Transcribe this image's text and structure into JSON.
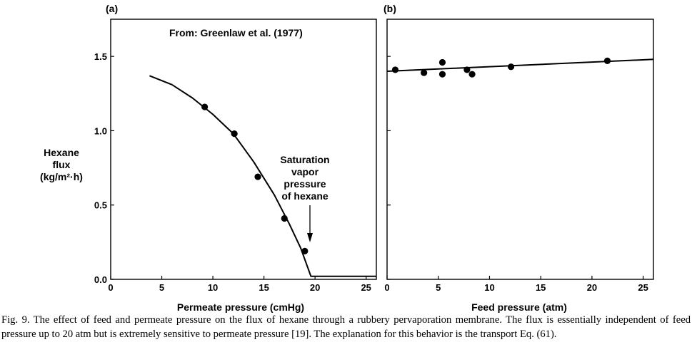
{
  "chart_data": [
    {
      "panel_label": "(a)",
      "type": "line+scatter",
      "annotation_source": "From: Greenlaw et al. (1977)",
      "xlabel": "Permeate pressure (cmHg)",
      "ylabel_lines": [
        "Hexane",
        "flux",
        "(kg/m²·h)"
      ],
      "xlim": [
        0,
        26
      ],
      "ylim": [
        0,
        1.75
      ],
      "x_ticks": [
        0,
        5,
        10,
        15,
        20,
        25
      ],
      "x_tick_labels": [
        "0",
        "5",
        "10",
        "15",
        "20",
        "25"
      ],
      "y_ticks": [
        0,
        0.5,
        1.0,
        1.5
      ],
      "y_tick_labels": [
        "0.0",
        "0.5",
        "1.0",
        "1.5"
      ],
      "points": [
        {
          "x": 9.2,
          "y": 1.16
        },
        {
          "x": 12.1,
          "y": 0.98
        },
        {
          "x": 14.4,
          "y": 0.69
        },
        {
          "x": 17.0,
          "y": 0.41
        },
        {
          "x": 19.0,
          "y": 0.19
        }
      ],
      "curve": [
        {
          "x": 3.8,
          "y": 1.37
        },
        {
          "x": 6.0,
          "y": 1.31
        },
        {
          "x": 8.0,
          "y": 1.22
        },
        {
          "x": 10.0,
          "y": 1.11
        },
        {
          "x": 12.0,
          "y": 0.98
        },
        {
          "x": 14.0,
          "y": 0.79
        },
        {
          "x": 16.0,
          "y": 0.57
        },
        {
          "x": 17.5,
          "y": 0.37
        },
        {
          "x": 18.6,
          "y": 0.21
        },
        {
          "x": 19.6,
          "y": 0.02
        },
        {
          "x": 26.0,
          "y": 0.02
        }
      ],
      "callout_lines": [
        "Saturation",
        "vapor",
        "pressure",
        "of hexane"
      ],
      "callout_arrow_x": 19.5
    },
    {
      "panel_label": "(b)",
      "type": "line+scatter",
      "xlabel": "Feed pressure (atm)",
      "xlim": [
        0,
        26
      ],
      "ylim": [
        0,
        1.75
      ],
      "x_ticks": [
        0,
        5,
        10,
        15,
        20,
        25
      ],
      "x_tick_labels": [
        "0",
        "5",
        "10",
        "15",
        "20",
        "25"
      ],
      "y_ticks": [
        0,
        0.5,
        1.0,
        1.5
      ],
      "points": [
        {
          "x": 0.8,
          "y": 1.41
        },
        {
          "x": 3.6,
          "y": 1.39
        },
        {
          "x": 5.4,
          "y": 1.46
        },
        {
          "x": 5.4,
          "y": 1.38
        },
        {
          "x": 7.8,
          "y": 1.41
        },
        {
          "x": 8.3,
          "y": 1.38
        },
        {
          "x": 12.1,
          "y": 1.43
        },
        {
          "x": 21.5,
          "y": 1.47
        }
      ],
      "line": [
        {
          "x": 0,
          "y": 1.4
        },
        {
          "x": 26,
          "y": 1.48
        }
      ]
    }
  ],
  "caption": "Fig. 9. The effect of feed and permeate pressure on the flux of hexane through a rubbery pervaporation membrane. The flux is essentially independent of feed pressure up to 20 atm but is extremely sensitive to permeate pressure [19]. The explanation for this behavior is the transport Eq. (61)."
}
